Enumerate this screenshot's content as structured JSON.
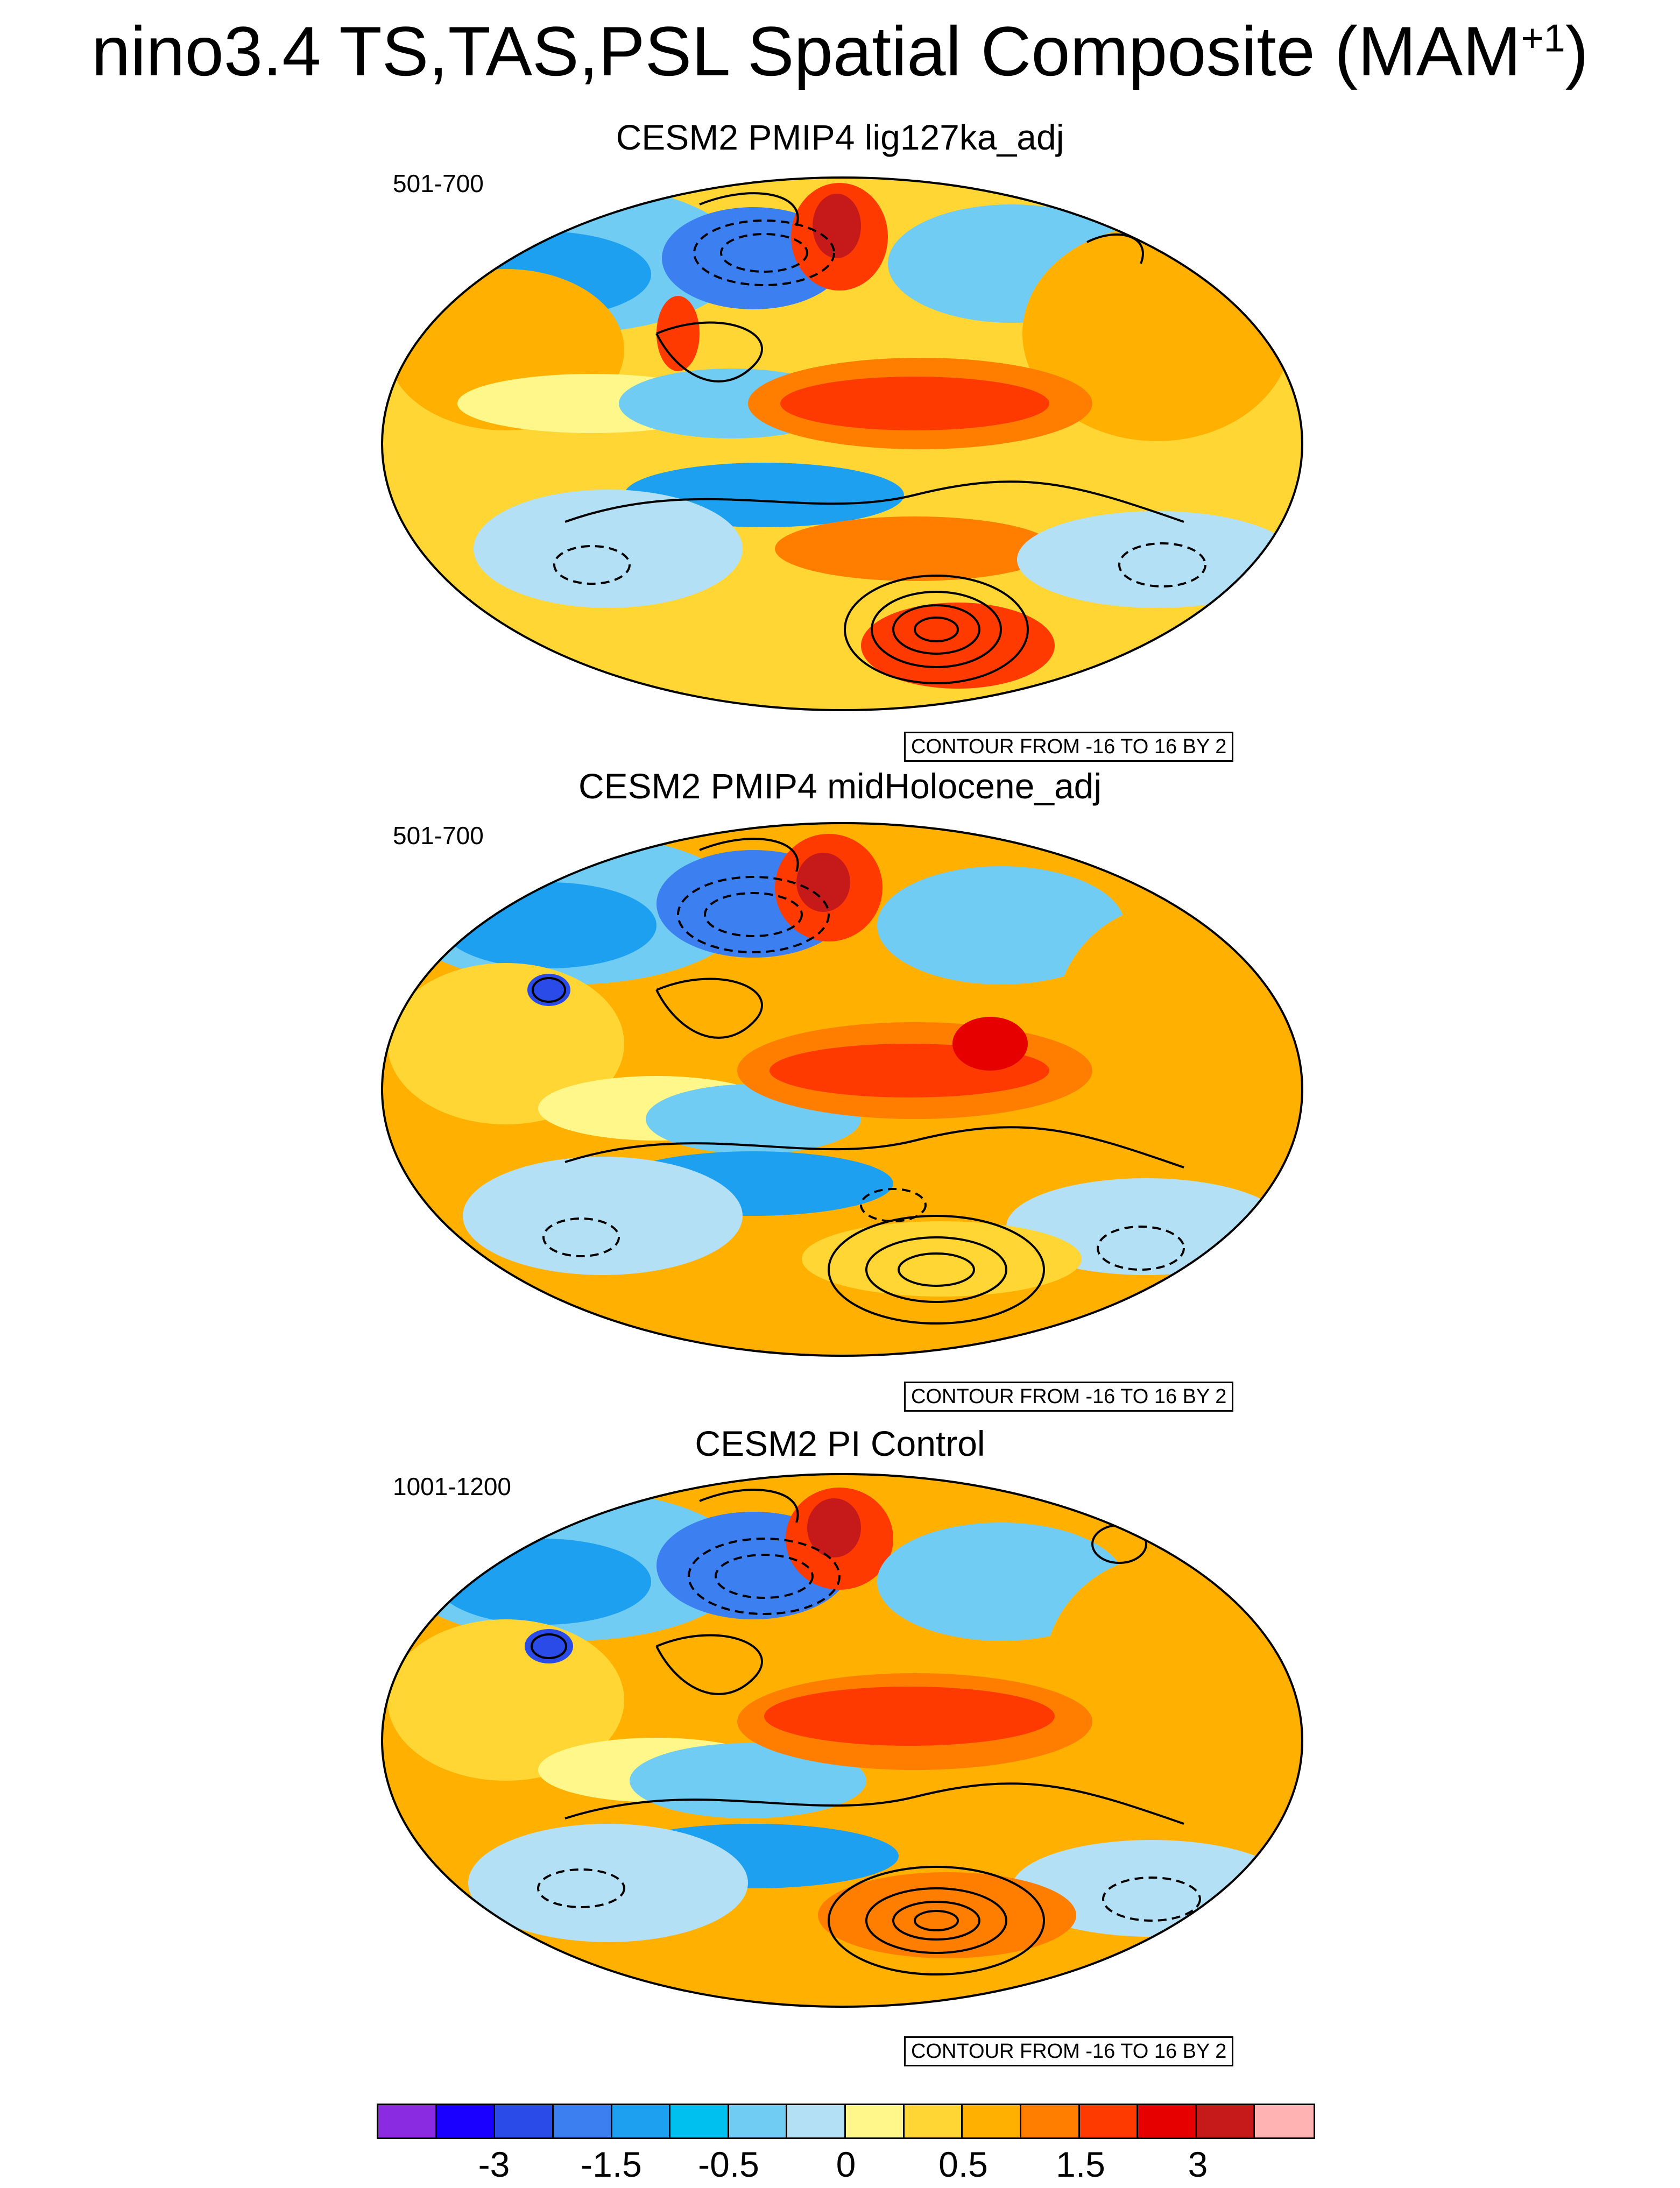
{
  "title": "nino3.4 TS,TAS,PSL Spatial Composite (MAM",
  "title_sup": "+1",
  "title_close": ")",
  "panels": [
    {
      "title": "CESM2 PMIP4 lig127ka_adj",
      "years": "501-700",
      "contour_info": "CONTOUR FROM -16 TO 16 BY 2"
    },
    {
      "title": "CESM2 PMIP4 midHolocene_adj",
      "years": "501-700",
      "contour_info": "CONTOUR FROM -16 TO 16 BY 2"
    },
    {
      "title": "CESM2 PI Control",
      "years": "1001-1200",
      "contour_info": "CONTOUR FROM -16 TO 16 BY 2"
    }
  ],
  "colorbar": {
    "colors": [
      "#8a2be2",
      "#1a00ff",
      "#2a4be8",
      "#3b7ff0",
      "#1ea0f0",
      "#00c0f0",
      "#70ccf3",
      "#b3e0f5",
      "#fff78a",
      "#ffd633",
      "#ffb000",
      "#ff7e00",
      "#ff3a00",
      "#e60000",
      "#c61a1a",
      "#ffb3b3"
    ],
    "tick_labels": [
      {
        "label": "-3",
        "boundary": 2
      },
      {
        "label": "-1.5",
        "boundary": 4
      },
      {
        "label": "-0.5",
        "boundary": 6
      },
      {
        "label": "0",
        "boundary": 8
      },
      {
        "label": "0.5",
        "boundary": 10
      },
      {
        "label": "1.5",
        "boundary": 12
      },
      {
        "label": "3",
        "boundary": 14
      }
    ]
  }
}
